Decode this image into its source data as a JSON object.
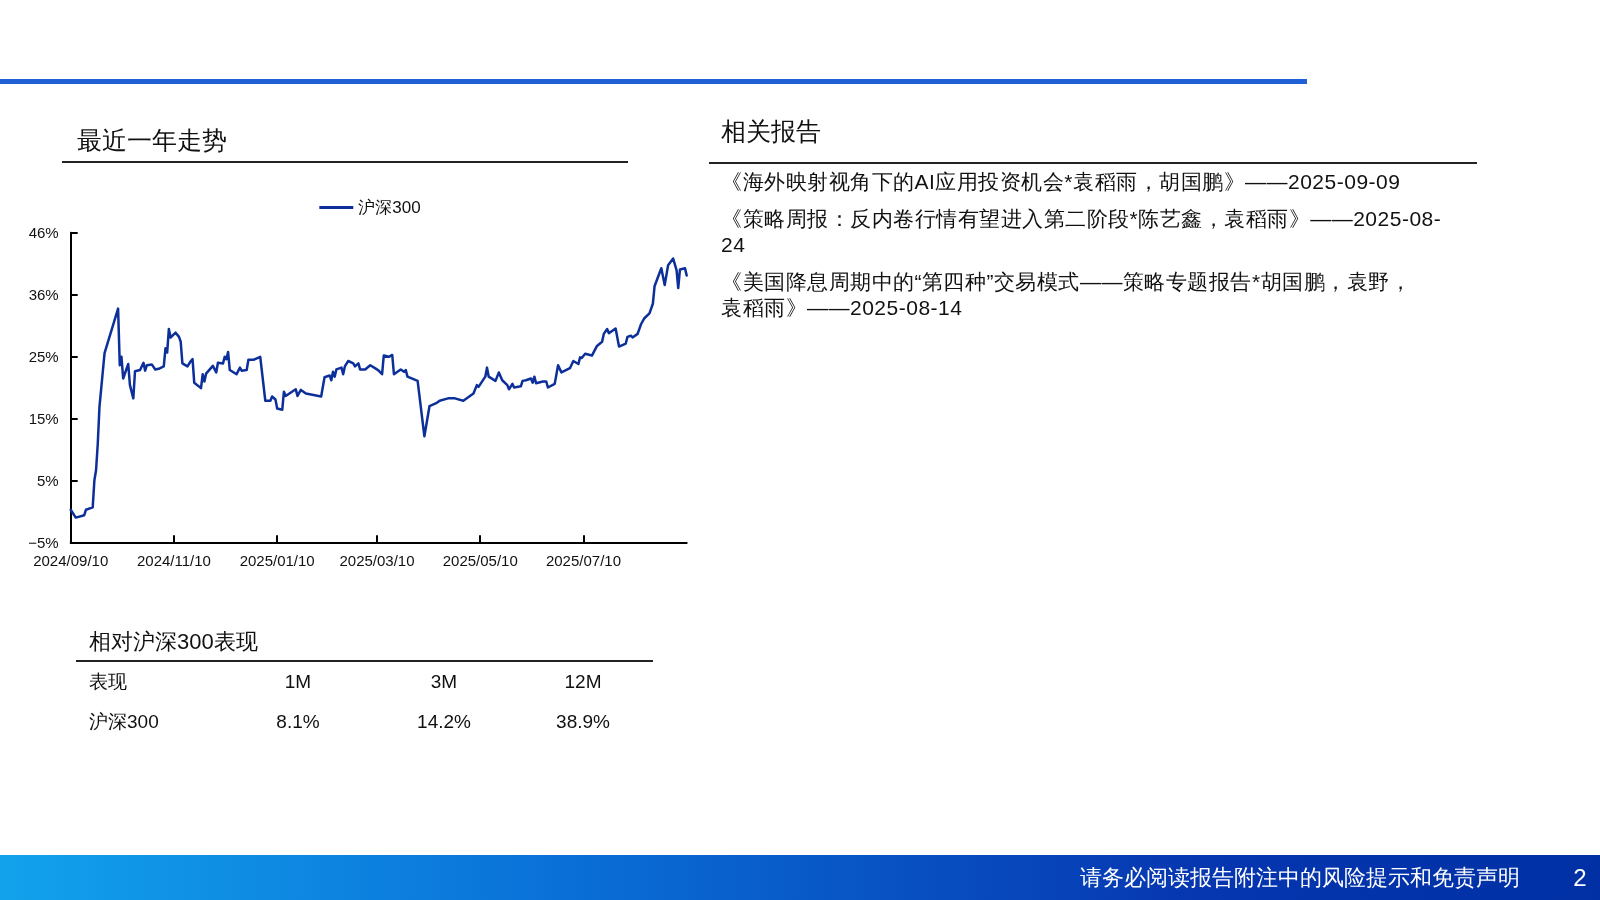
{
  "chart_data": {
    "type": "line",
    "title": "最近一年走势",
    "legend": "top",
    "grid": false,
    "marker": "none",
    "line_style": "solid",
    "xlim": [
      "2024-09-10",
      "2025-09-09"
    ],
    "xticks": [
      {
        "value": "2024-09-10",
        "label": "2024/09/10"
      },
      {
        "value": "2024-11-10",
        "label": "2024/11/10"
      },
      {
        "value": "2025-01-10",
        "label": "2025/01/10"
      },
      {
        "value": "2025-03-10",
        "label": "2025/03/10"
      },
      {
        "value": "2025-05-10",
        "label": "2025/05/10"
      },
      {
        "value": "2025-07-10",
        "label": "2025/07/10"
      }
    ],
    "ylim": [
      -5.4,
      46
    ],
    "yticks": [
      {
        "value": -5.4,
        "label": "−5%"
      },
      {
        "value": 4.88,
        "label": "5%"
      },
      {
        "value": 15.16,
        "label": "15%"
      },
      {
        "value": 25.44,
        "label": "25%"
      },
      {
        "value": 35.72,
        "label": "36%"
      },
      {
        "value": 46,
        "label": "46%"
      }
    ],
    "x": [
      "2024-09-10",
      "2024-09-13",
      "2024-09-18",
      "2024-09-19",
      "2024-09-23",
      "2024-09-24",
      "2024-09-25",
      "2024-09-26",
      "2024-09-27",
      "2024-09-30",
      "2024-10-08",
      "2024-10-09",
      "2024-10-10",
      "2024-10-11",
      "2024-10-14",
      "2024-10-15",
      "2024-10-17",
      "2024-10-18",
      "2024-10-21",
      "2024-10-23",
      "2024-10-24",
      "2024-10-25",
      "2024-10-28",
      "2024-10-30",
      "2024-11-01",
      "2024-11-04",
      "2024-11-05",
      "2024-11-06",
      "2024-11-07",
      "2024-11-08",
      "2024-11-11",
      "2024-11-13",
      "2024-11-14",
      "2024-11-15",
      "2024-11-18",
      "2024-11-20",
      "2024-11-21",
      "2024-11-22",
      "2024-11-26",
      "2024-11-27",
      "2024-11-28",
      "2024-11-29",
      "2024-12-03",
      "2024-12-05",
      "2024-12-06",
      "2024-12-09",
      "2024-12-10",
      "2024-12-11",
      "2024-12-12",
      "2024-12-13",
      "2024-12-17",
      "2024-12-19",
      "2024-12-20",
      "2024-12-23",
      "2024-12-24",
      "2024-12-27",
      "2024-12-31",
      "2025-01-03",
      "2025-01-06",
      "2025-01-07",
      "2025-01-09",
      "2025-01-10",
      "2025-01-13",
      "2025-01-14",
      "2025-01-15",
      "2025-01-21",
      "2025-01-22",
      "2025-01-24",
      "2025-01-27",
      "2025-02-05",
      "2025-02-07",
      "2025-02-10",
      "2025-02-11",
      "2025-02-12",
      "2025-02-13",
      "2025-02-14",
      "2025-02-17",
      "2025-02-18",
      "2025-02-19",
      "2025-02-21",
      "2025-02-24",
      "2025-02-25",
      "2025-02-27",
      "2025-02-28",
      "2025-03-03",
      "2025-03-06",
      "2025-03-10",
      "2025-03-11",
      "2025-03-13",
      "2025-03-14",
      "2025-03-17",
      "2025-03-19",
      "2025-03-20",
      "2025-03-24",
      "2025-03-26",
      "2025-03-27",
      "2025-03-28",
      "2025-04-03",
      "2025-04-07",
      "2025-04-10",
      "2025-04-14",
      "2025-04-16",
      "2025-04-21",
      "2025-04-25",
      "2025-04-30",
      "2025-05-06",
      "2025-05-08",
      "2025-05-09",
      "2025-05-13",
      "2025-05-14",
      "2025-05-15",
      "2025-05-19",
      "2025-05-21",
      "2025-05-23",
      "2025-05-26",
      "2025-05-27",
      "2025-05-29",
      "2025-05-30",
      "2025-06-03",
      "2025-06-04",
      "2025-06-06",
      "2025-06-09",
      "2025-06-10",
      "2025-06-11",
      "2025-06-12",
      "2025-06-16",
      "2025-06-18",
      "2025-06-19",
      "2025-06-23",
      "2025-06-25",
      "2025-06-27",
      "2025-07-02",
      "2025-07-04",
      "2025-07-07",
      "2025-07-08",
      "2025-07-09",
      "2025-07-11",
      "2025-07-15",
      "2025-07-18",
      "2025-07-21",
      "2025-07-22",
      "2025-07-24",
      "2025-07-25",
      "2025-07-29",
      "2025-07-31",
      "2025-08-04",
      "2025-08-05",
      "2025-08-07",
      "2025-08-08",
      "2025-08-11",
      "2025-08-13",
      "2025-08-15",
      "2025-08-18",
      "2025-08-20",
      "2025-08-21",
      "2025-08-25",
      "2025-08-27",
      "2025-08-29",
      "2025-09-01",
      "2025-09-03",
      "2025-09-04",
      "2025-09-05",
      "2025-09-08",
      "2025-09-09"
    ],
    "series": [
      {
        "name": "沪深300",
        "color": "#0d2f9a",
        "values": [
          0.0,
          -1.3,
          -0.9,
          0.0,
          0.4,
          4.9,
          6.6,
          11.0,
          17.1,
          26.0,
          33.4,
          24.0,
          25.4,
          21.8,
          24.2,
          20.7,
          18.5,
          23.0,
          23.2,
          24.4,
          23.1,
          24.0,
          24.1,
          23.3,
          23.4,
          23.8,
          26.8,
          26.1,
          30.0,
          28.6,
          29.4,
          28.7,
          27.9,
          24.3,
          23.8,
          24.7,
          25.0,
          21.1,
          20.2,
          22.5,
          21.3,
          22.6,
          23.9,
          22.8,
          24.4,
          24.3,
          25.4,
          25.0,
          26.2,
          23.2,
          22.5,
          23.6,
          23.1,
          23.2,
          24.9,
          24.9,
          25.4,
          18.1,
          18.1,
          18.8,
          18.3,
          16.8,
          16.6,
          19.6,
          18.9,
          20.0,
          18.9,
          19.9,
          19.3,
          18.8,
          22.0,
          22.3,
          21.5,
          22.9,
          22.1,
          23.3,
          23.6,
          22.5,
          23.8,
          24.7,
          24.3,
          23.8,
          24.3,
          23.3,
          23.3,
          24.0,
          23.3,
          23.1,
          22.5,
          25.6,
          25.4,
          25.7,
          22.5,
          23.3,
          22.9,
          23.2,
          22.1,
          21.4,
          12.2,
          17.2,
          17.7,
          18.1,
          18.5,
          18.5,
          18.1,
          19.3,
          20.7,
          20.4,
          22.1,
          23.6,
          22.1,
          21.4,
          22.8,
          21.5,
          20.7,
          20.0,
          20.9,
          20.3,
          20.5,
          21.4,
          21.5,
          21.8,
          21.1,
          22.1,
          21.0,
          21.3,
          21.3,
          20.3,
          20.9,
          24.0,
          22.8,
          23.5,
          24.7,
          24.2,
          25.3,
          25.2,
          25.9,
          25.6,
          27.2,
          27.9,
          29.2,
          30.0,
          29.3,
          30.1,
          27.1,
          27.6,
          28.7,
          28.9,
          28.6,
          29.2,
          30.8,
          31.8,
          32.6,
          34.2,
          37.1,
          40.1,
          37.3,
          40.6,
          41.7,
          39.8,
          36.8,
          39.9,
          40.1,
          38.9
        ]
      }
    ],
    "annotations": [
      "相关报告",
      "《海外映射视角下的AI应用投资机会*袁稻雨，胡国鹏》——2025-09-09",
      "《策略周报：反内卷行情有望进入第二阶段*陈艺鑫，袁稻雨》——2025-08-24",
      "《美国降息周期中的“第四种”交易模式——策略专题报告*胡国鹏，袁野，袁稻雨》——2025-08-14",
      "相对沪深300表现",
      "表现",
      "1M",
      "3M",
      "12M",
      "沪深300",
      "8.1%",
      "14.2%",
      "38.9%",
      "请务必阅读报告附注中的风险提示和免责声明",
      "2"
    ]
  }
}
